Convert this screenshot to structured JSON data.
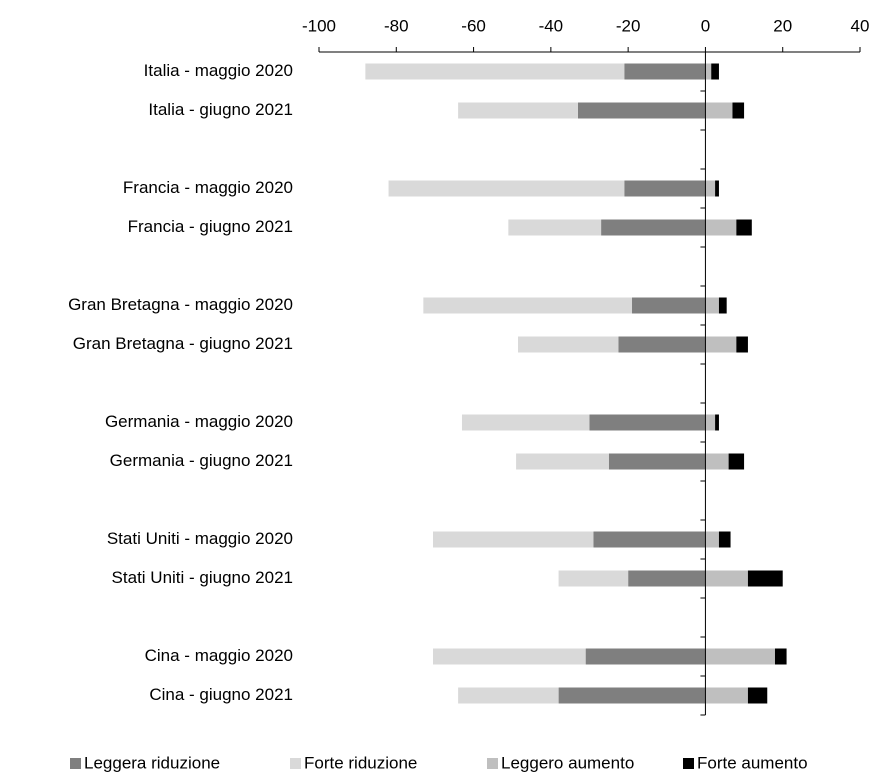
{
  "chart_data": {
    "type": "stacked-barh",
    "categories": [
      "Italia - maggio 2020",
      "Italia - giugno 2021",
      null,
      "Francia - maggio 2020",
      "Francia - giugno 2021",
      null,
      "Gran Bretagna - maggio 2020",
      "Gran Bretagna - giugno 2021",
      null,
      "Germania - maggio 2020",
      "Germania - giugno 2021",
      null,
      "Stati Uniti - maggio 2020",
      "Stati Uniti - giugno 2021",
      null,
      "Cina - maggio 2020",
      "Cina - giugno 2021"
    ],
    "series": [
      {
        "name": "Leggera riduzione",
        "color": "#7f7f7f",
        "values": [
          -21,
          -33,
          null,
          -21,
          -27,
          null,
          -19,
          -22.5,
          null,
          -30,
          -25,
          null,
          -29,
          -20,
          null,
          -31,
          -38
        ]
      },
      {
        "name": "Forte riduzione",
        "color": "#d9d9d9",
        "values": [
          -67,
          -31,
          null,
          -61,
          -24,
          null,
          -54,
          -26,
          null,
          -33,
          -24,
          null,
          -41.5,
          -18,
          null,
          -39.5,
          -26
        ]
      },
      {
        "name": "Leggero aumento",
        "color": "#bfbfbf",
        "values": [
          1.5,
          7,
          null,
          2.5,
          8,
          null,
          3.5,
          8,
          null,
          2.5,
          6,
          null,
          3.5,
          11,
          null,
          18,
          11
        ]
      },
      {
        "name": "Forte aumento",
        "color": "#000000",
        "values": [
          2,
          3,
          null,
          1,
          4,
          null,
          2,
          3,
          null,
          1,
          4,
          null,
          3,
          9,
          null,
          3,
          5
        ]
      }
    ],
    "xlim": [
      -100,
      40
    ],
    "xticks": [
      -100,
      -80,
      -60,
      -40,
      -20,
      0,
      20,
      40
    ],
    "legend": "bottom"
  }
}
